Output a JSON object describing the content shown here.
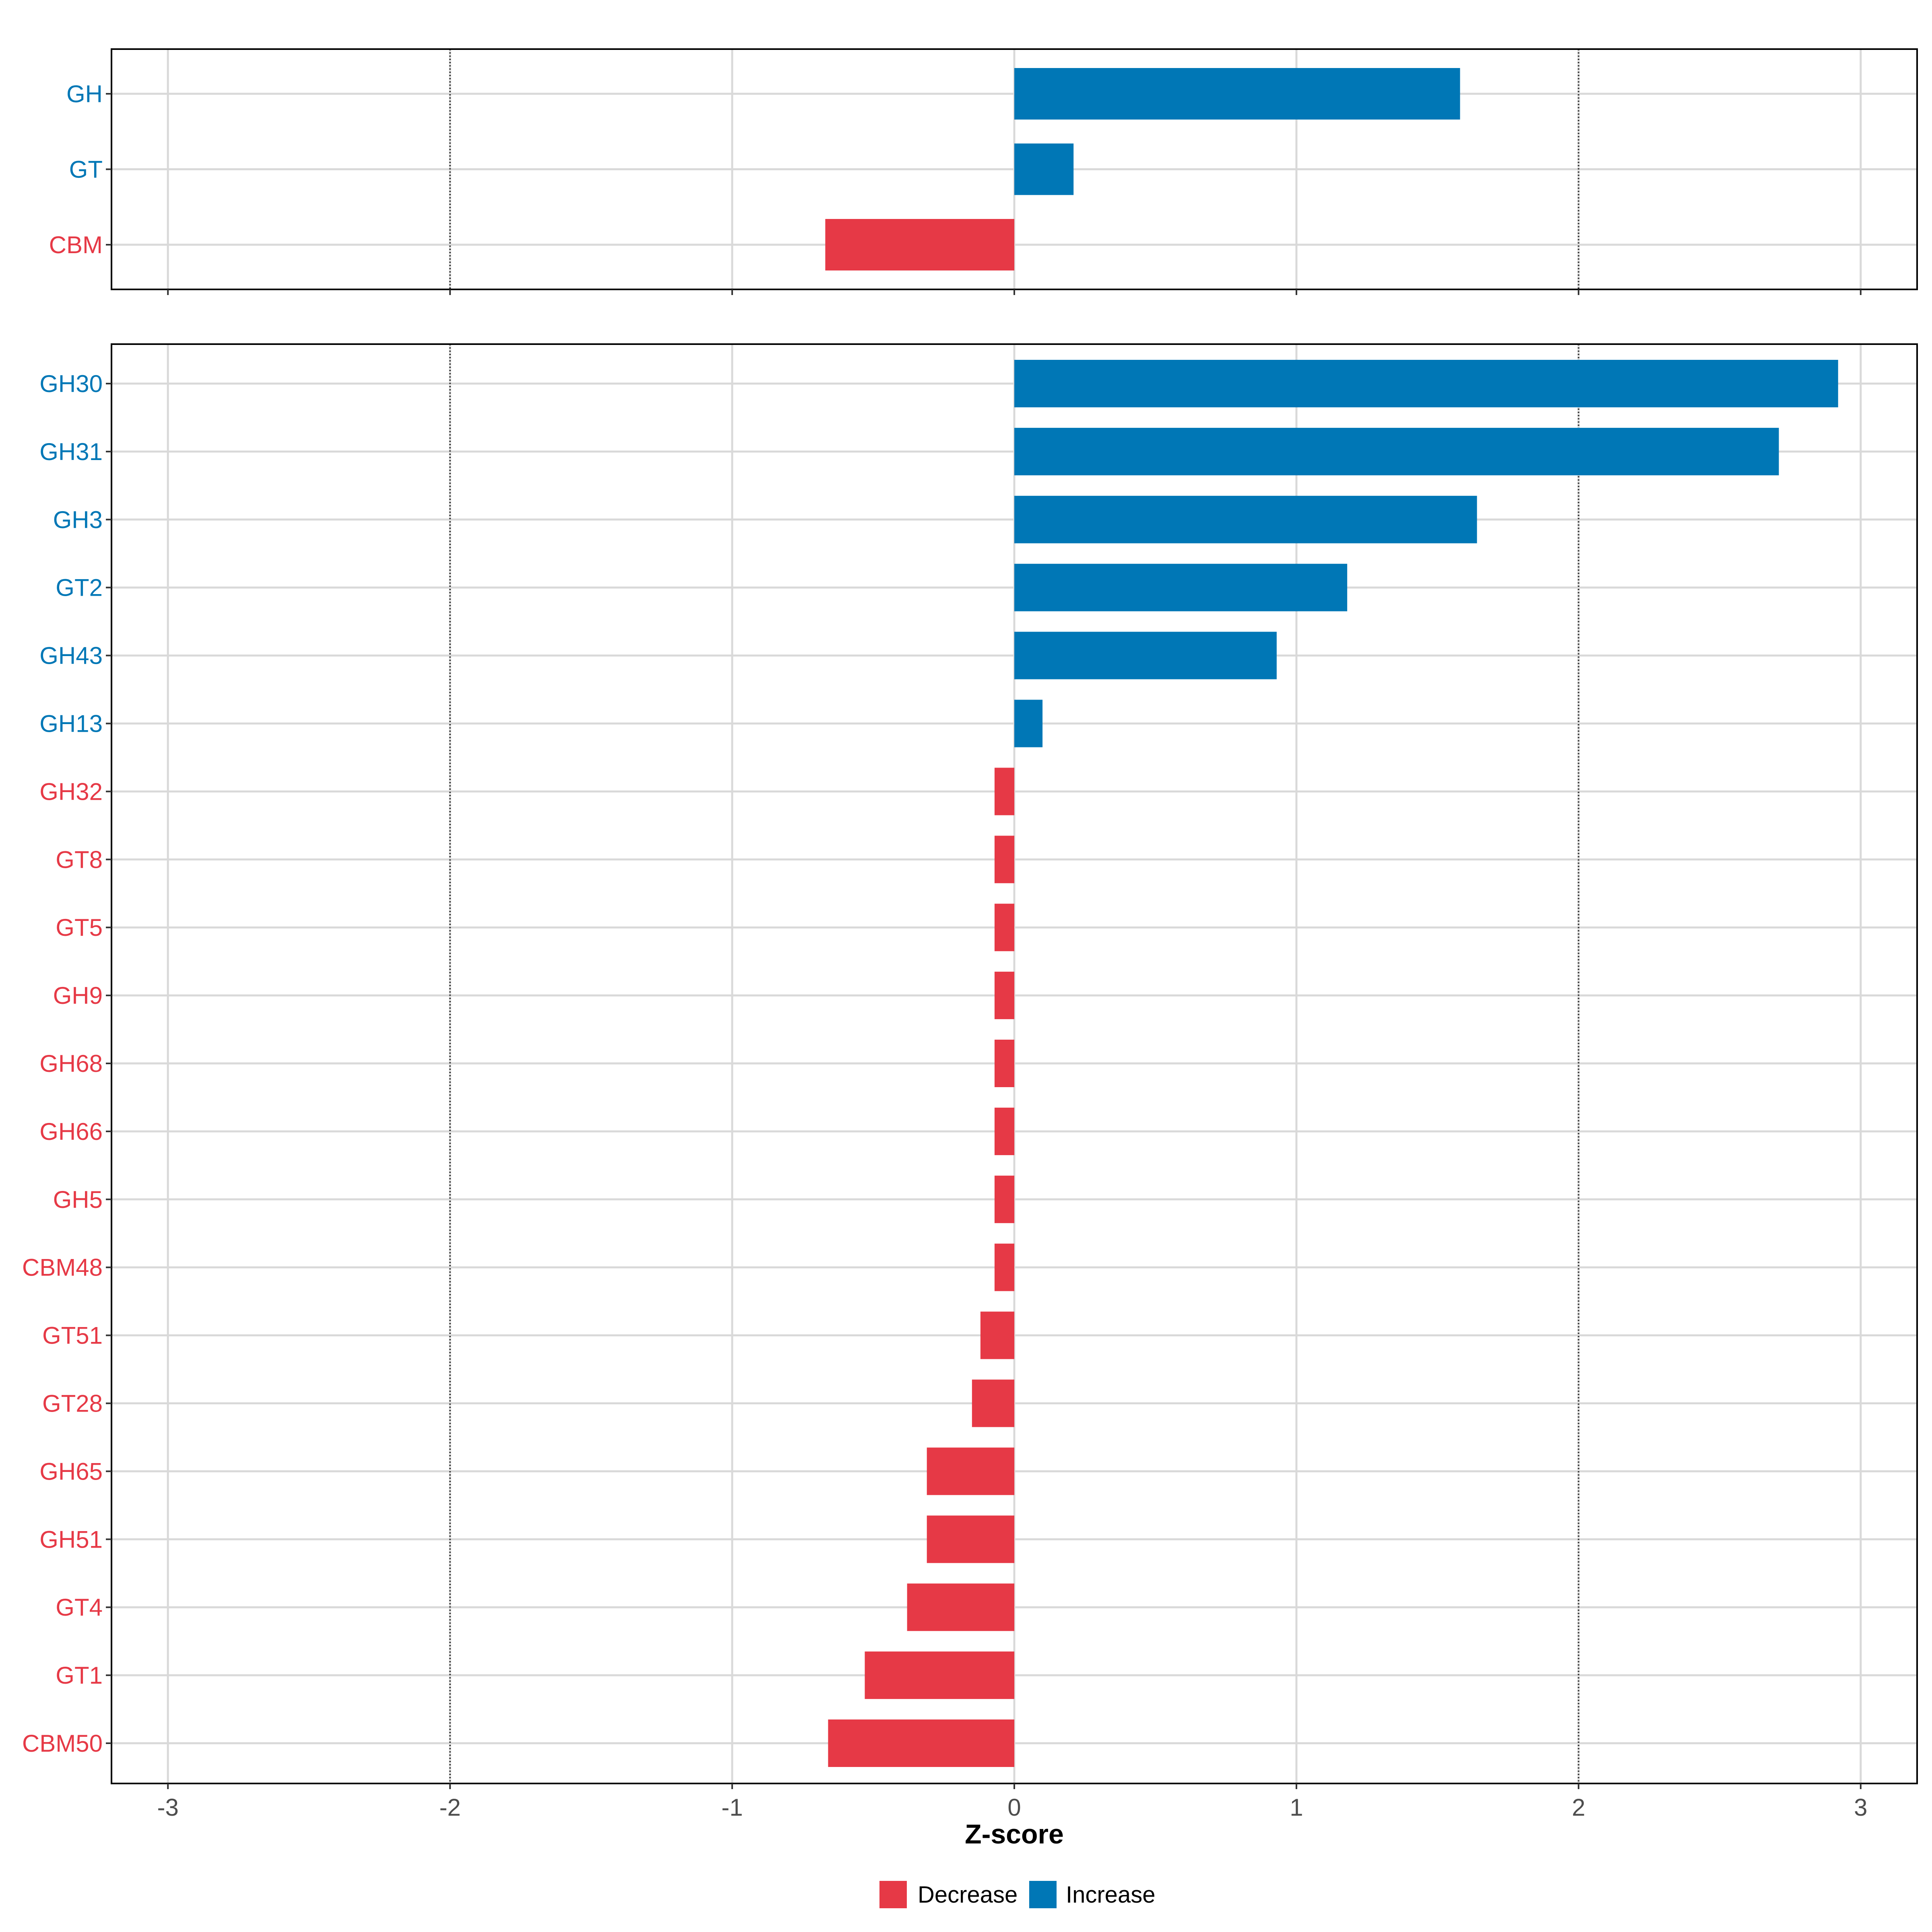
{
  "colors": {
    "decrease": "#E63946",
    "increase": "#0077B6"
  },
  "chart_data": [
    {
      "type": "bar",
      "orientation": "horizontal",
      "categories": [
        "GH",
        "GT",
        "CBM"
      ],
      "values": [
        1.58,
        0.21,
        -0.67
      ],
      "xlim": [
        -3.2,
        3.2
      ],
      "xticks": [
        "-3",
        "-2",
        "-1",
        "0",
        "1",
        "2",
        "3"
      ],
      "reference_lines": [
        -2,
        2
      ],
      "grid": true
    },
    {
      "type": "bar",
      "orientation": "horizontal",
      "categories": [
        "GH30",
        "GH31",
        "GH3",
        "GT2",
        "GH43",
        "GH13",
        "GH32",
        "GT8",
        "GT5",
        "GH9",
        "GH68",
        "GH66",
        "GH5",
        "CBM48",
        "GT51",
        "GT28",
        "GH65",
        "GH51",
        "GT4",
        "GT1",
        "CBM50"
      ],
      "values": [
        2.92,
        2.71,
        1.64,
        1.18,
        0.93,
        0.1,
        -0.07,
        -0.07,
        -0.07,
        -0.07,
        -0.07,
        -0.07,
        -0.07,
        -0.07,
        -0.12,
        -0.15,
        -0.31,
        -0.31,
        -0.38,
        -0.53,
        -0.66
      ],
      "xlim": [
        -3.2,
        3.2
      ],
      "xticks": [
        "-3",
        "-2",
        "-1",
        "0",
        "1",
        "2",
        "3"
      ],
      "reference_lines": [
        -2,
        2
      ],
      "grid": true,
      "xlabel": "Z-score"
    }
  ],
  "legend": {
    "position": "bottom",
    "items": [
      {
        "label": "Decrease",
        "color": "#E63946"
      },
      {
        "label": "Increase",
        "color": "#0077B6"
      }
    ]
  }
}
